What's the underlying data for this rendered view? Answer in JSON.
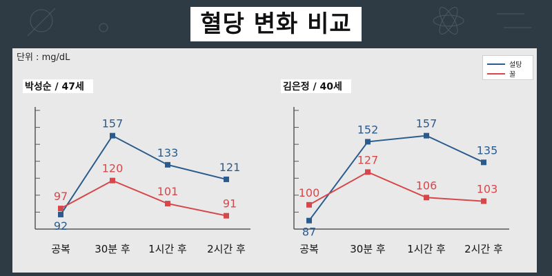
{
  "title": "혈당 변화 비교",
  "unit_label": "단위 : mg/dL",
  "colors": {
    "sugar": "#2a5b8c",
    "honey": "#d6474a"
  },
  "legend": [
    {
      "label": "설탕",
      "color": "#2a5b8c"
    },
    {
      "label": "꿀",
      "color": "#d6474a"
    }
  ],
  "chart_data": [
    {
      "type": "line",
      "title": "박성순 / 47세",
      "categories": [
        "공복",
        "30분 후",
        "1시간 후",
        "2시간 후"
      ],
      "series": [
        {
          "name": "설탕",
          "values": [
            92,
            157,
            133,
            121
          ]
        },
        {
          "name": "꿀",
          "values": [
            97,
            120,
            101,
            91
          ]
        }
      ],
      "ylim": [
        80,
        175
      ]
    },
    {
      "type": "line",
      "title": "김은정 / 40세",
      "categories": [
        "공복",
        "30분 후",
        "1시간 후",
        "2시간 후"
      ],
      "series": [
        {
          "name": "설탕",
          "values": [
            87,
            152,
            157,
            135
          ]
        },
        {
          "name": "꿀",
          "values": [
            100,
            127,
            106,
            103
          ]
        }
      ],
      "ylim": [
        80,
        175
      ]
    }
  ]
}
